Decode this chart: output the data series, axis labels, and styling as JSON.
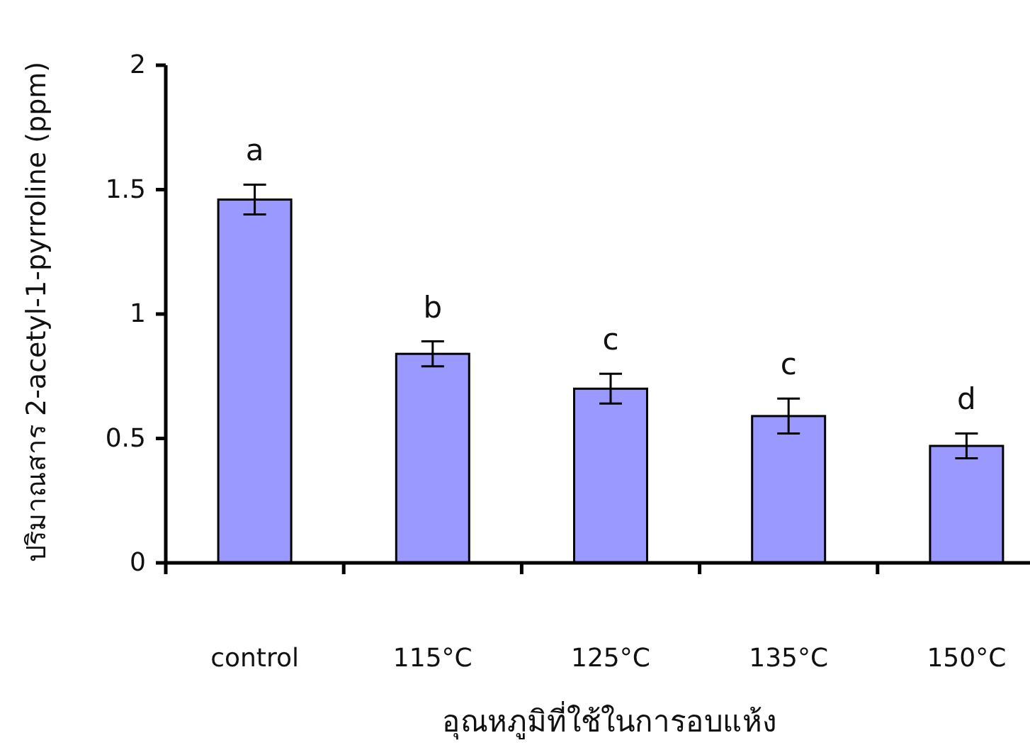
{
  "chart_data": {
    "type": "bar",
    "xlabel": "อุณหภูมิที่ใช้ในการอบแห้ง",
    "ylabel": "ปริมาณสาร 2-acetyl-1-pyrroline (ppm)",
    "categories": [
      "control",
      "115°C",
      "125°C",
      "135°C",
      "150°C"
    ],
    "values": [
      1.46,
      0.84,
      0.7,
      0.59,
      0.47
    ],
    "errors": [
      0.06,
      0.05,
      0.06,
      0.07,
      0.05
    ],
    "color": "#9999ff",
    "ylim": [
      0,
      2
    ],
    "yticks": [
      0,
      0.5,
      1,
      1.5,
      2
    ],
    "grid": false,
    "annotations": [
      "a",
      "b",
      "c",
      "c",
      "d"
    ]
  }
}
